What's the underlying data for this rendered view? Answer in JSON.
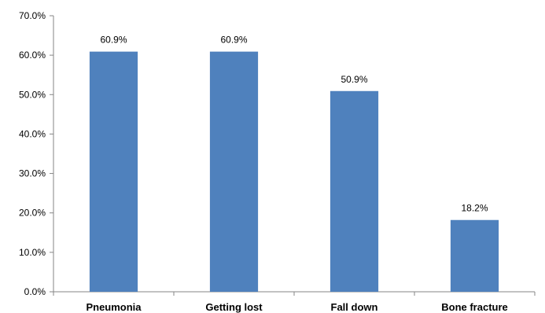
{
  "chart_data": {
    "type": "bar",
    "categories": [
      "Pneumonia",
      "Getting lost",
      "Fall down",
      "Bone fracture"
    ],
    "values": [
      60.9,
      60.9,
      50.9,
      18.2
    ],
    "data_labels": [
      "60.9%",
      "60.9%",
      "50.9%",
      "18.2%"
    ],
    "ylim": [
      0,
      70
    ],
    "yticks": [
      0,
      10,
      20,
      30,
      40,
      50,
      60,
      70
    ],
    "ytick_labels": [
      "0.0%",
      "10.0%",
      "20.0%",
      "30.0%",
      "40.0%",
      "50.0%",
      "60.0%",
      "70.0%"
    ],
    "bar_color": "#4f81bd",
    "grid": false,
    "legend": "none"
  }
}
